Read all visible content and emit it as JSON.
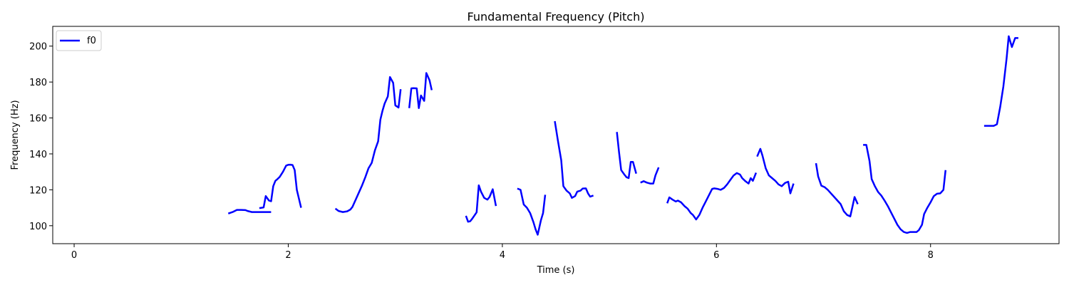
{
  "chart_data": {
    "type": "line",
    "title": "Fundamental Frequency (Pitch)",
    "xlabel": "Time (s)",
    "ylabel": "Frequency (Hz)",
    "xlim": [
      -0.2,
      9.2
    ],
    "ylim": [
      90,
      211
    ],
    "x_ticks": [
      0,
      2,
      4,
      6,
      8
    ],
    "y_ticks": [
      100,
      120,
      140,
      160,
      180,
      200
    ],
    "grid": false,
    "legend_position": "upper-left",
    "series": [
      {
        "name": "f0",
        "color": "#0000ff",
        "segments": [
          [
            [
              1.44,
              106.8
            ],
            [
              1.48,
              107.6
            ],
            [
              1.52,
              108.8
            ],
            [
              1.56,
              108.8
            ],
            [
              1.6,
              108.7
            ],
            [
              1.62,
              108.2
            ],
            [
              1.66,
              107.6
            ],
            [
              1.7,
              107.6
            ],
            [
              1.74,
              107.6
            ],
            [
              1.78,
              107.6
            ],
            [
              1.82,
              107.6
            ],
            [
              1.84,
              107.6
            ]
          ],
          [
            [
              1.73,
              109.8
            ],
            [
              1.77,
              110.2
            ],
            [
              1.79,
              116.5
            ],
            [
              1.82,
              114
            ],
            [
              1.84,
              113.6
            ],
            [
              1.86,
              122
            ],
            [
              1.88,
              125
            ],
            [
              1.9,
              126
            ],
            [
              1.92,
              127.2
            ],
            [
              1.95,
              130
            ],
            [
              1.98,
              133.5
            ],
            [
              2.0,
              133.9
            ],
            [
              2.02,
              134
            ],
            [
              2.04,
              133.8
            ],
            [
              2.06,
              131
            ],
            [
              2.08,
              120
            ],
            [
              2.1,
              115
            ],
            [
              2.12,
              110
            ]
          ],
          [
            [
              2.44,
              109.5
            ],
            [
              2.47,
              108.2
            ],
            [
              2.51,
              107.6
            ],
            [
              2.55,
              108
            ],
            [
              2.58,
              109
            ],
            [
              2.6,
              110.5
            ],
            [
              2.63,
              114.5
            ],
            [
              2.66,
              118.5
            ],
            [
              2.69,
              122.5
            ],
            [
              2.72,
              127
            ],
            [
              2.75,
              132
            ],
            [
              2.78,
              135
            ],
            [
              2.81,
              142
            ],
            [
              2.84,
              147
            ],
            [
              2.86,
              159
            ],
            [
              2.88,
              164
            ],
            [
              2.9,
              168
            ],
            [
              2.93,
              172
            ],
            [
              2.95,
              182.8
            ],
            [
              2.98,
              179.5
            ],
            [
              3.0,
              167
            ],
            [
              3.03,
              165.8
            ],
            [
              3.05,
              176
            ]
          ],
          [
            [
              3.13,
              165.5
            ],
            [
              3.15,
              176.5
            ],
            [
              3.17,
              176.6
            ],
            [
              3.2,
              176.5
            ],
            [
              3.22,
              165.5
            ],
            [
              3.24,
              172.5
            ],
            [
              3.27,
              169.5
            ],
            [
              3.29,
              185
            ],
            [
              3.32,
              181
            ],
            [
              3.34,
              175.5
            ]
          ],
          [
            [
              3.66,
              105.5
            ],
            [
              3.68,
              102.2
            ],
            [
              3.7,
              102.5
            ],
            [
              3.72,
              104
            ],
            [
              3.76,
              107.5
            ],
            [
              3.78,
              122.5
            ],
            [
              3.8,
              119
            ],
            [
              3.83,
              115.5
            ],
            [
              3.86,
              114.5
            ],
            [
              3.88,
              116
            ],
            [
              3.91,
              120.3
            ],
            [
              3.94,
              111
            ]
          ],
          [
            [
              4.14,
              120.7
            ],
            [
              4.17,
              120
            ],
            [
              4.2,
              111.8
            ],
            [
              4.23,
              110
            ],
            [
              4.26,
              107
            ],
            [
              4.29,
              102
            ],
            [
              4.31,
              98
            ],
            [
              4.33,
              95
            ],
            [
              4.36,
              103
            ],
            [
              4.38,
              107
            ],
            [
              4.4,
              117.2
            ]
          ],
          [
            [
              4.49,
              158.2
            ],
            [
              4.52,
              147
            ],
            [
              4.55,
              136.5
            ],
            [
              4.57,
              122
            ],
            [
              4.6,
              119.5
            ],
            [
              4.63,
              118
            ],
            [
              4.65,
              115.5
            ],
            [
              4.68,
              116.5
            ],
            [
              4.7,
              119
            ],
            [
              4.73,
              119.5
            ],
            [
              4.75,
              120.7
            ],
            [
              4.78,
              120.8
            ],
            [
              4.8,
              118
            ],
            [
              4.82,
              116.2
            ],
            [
              4.85,
              116.8
            ]
          ],
          [
            [
              5.07,
              152.2
            ],
            [
              5.09,
              141
            ],
            [
              5.11,
              131
            ],
            [
              5.14,
              128.5
            ],
            [
              5.16,
              127
            ],
            [
              5.18,
              126.5
            ],
            [
              5.2,
              135.5
            ],
            [
              5.22,
              135.5
            ],
            [
              5.25,
              129
            ]
          ],
          [
            [
              5.29,
              124
            ],
            [
              5.32,
              124.8
            ],
            [
              5.35,
              124
            ],
            [
              5.38,
              123.5
            ],
            [
              5.41,
              123.5
            ],
            [
              5.43,
              128
            ],
            [
              5.46,
              132.5
            ]
          ],
          [
            [
              5.54,
              112.5
            ],
            [
              5.56,
              115.8
            ],
            [
              5.59,
              114.5
            ],
            [
              5.62,
              113.5
            ],
            [
              5.64,
              114
            ],
            [
              5.67,
              113
            ],
            [
              5.7,
              111
            ],
            [
              5.73,
              109.5
            ],
            [
              5.76,
              107
            ],
            [
              5.78,
              106
            ],
            [
              5.81,
              103.5
            ],
            [
              5.84,
              106
            ],
            [
              5.87,
              110
            ],
            [
              5.9,
              113.5
            ],
            [
              5.93,
              117
            ],
            [
              5.96,
              120.5
            ],
            [
              5.98,
              120.8
            ],
            [
              6.01,
              120.5
            ],
            [
              6.04,
              120
            ],
            [
              6.07,
              121
            ],
            [
              6.1,
              123
            ],
            [
              6.13,
              125.5
            ],
            [
              6.16,
              128
            ],
            [
              6.19,
              129.3
            ],
            [
              6.22,
              128.5
            ],
            [
              6.24,
              126.5
            ],
            [
              6.27,
              124.8
            ],
            [
              6.3,
              123.5
            ],
            [
              6.32,
              126.5
            ],
            [
              6.34,
              125
            ],
            [
              6.37,
              129.5
            ]
          ],
          [
            [
              6.38,
              138.5
            ],
            [
              6.41,
              142.8
            ],
            [
              6.43,
              139
            ],
            [
              6.46,
              132
            ],
            [
              6.49,
              128
            ],
            [
              6.52,
              126.5
            ],
            [
              6.55,
              125
            ],
            [
              6.58,
              123
            ],
            [
              6.61,
              122
            ],
            [
              6.64,
              123.8
            ],
            [
              6.67,
              124.5
            ],
            [
              6.69,
              118
            ],
            [
              6.72,
              123.5
            ]
          ],
          [
            [
              6.93,
              134.8
            ],
            [
              6.95,
              127.5
            ],
            [
              6.98,
              122.3
            ],
            [
              7.01,
              121.5
            ],
            [
              7.04,
              120
            ],
            [
              7.07,
              118
            ],
            [
              7.1,
              116
            ],
            [
              7.13,
              114
            ],
            [
              7.16,
              112
            ],
            [
              7.19,
              108
            ],
            [
              7.22,
              106
            ],
            [
              7.25,
              105.2
            ],
            [
              7.27,
              110.5
            ],
            [
              7.29,
              116
            ],
            [
              7.32,
              112
            ]
          ],
          [
            [
              7.37,
              145
            ],
            [
              7.4,
              145
            ],
            [
              7.43,
              136
            ],
            [
              7.45,
              126
            ],
            [
              7.48,
              122
            ],
            [
              7.51,
              118.8
            ],
            [
              7.54,
              116.8
            ],
            [
              7.57,
              114
            ],
            [
              7.6,
              111
            ],
            [
              7.63,
              107.5
            ],
            [
              7.66,
              104
            ],
            [
              7.69,
              100.5
            ],
            [
              7.72,
              98
            ],
            [
              7.75,
              96.5
            ],
            [
              7.78,
              96
            ],
            [
              7.81,
              96.5
            ],
            [
              7.84,
              96.5
            ],
            [
              7.87,
              96.5
            ],
            [
              7.89,
              97.5
            ],
            [
              7.92,
              100.5
            ],
            [
              7.94,
              106.5
            ],
            [
              7.97,
              110
            ],
            [
              8.0,
              113
            ],
            [
              8.03,
              116.5
            ],
            [
              8.06,
              117.8
            ],
            [
              8.09,
              118
            ],
            [
              8.12,
              120
            ],
            [
              8.14,
              131
            ]
          ],
          [
            [
              8.5,
              155.6
            ],
            [
              8.53,
              155.6
            ],
            [
              8.56,
              155.6
            ],
            [
              8.59,
              155.6
            ],
            [
              8.62,
              156.5
            ],
            [
              8.65,
              166
            ],
            [
              8.68,
              177.5
            ],
            [
              8.71,
              193
            ],
            [
              8.73,
              205.5
            ],
            [
              8.76,
              199.5
            ],
            [
              8.79,
              204.5
            ],
            [
              8.82,
              204.5
            ]
          ]
        ]
      }
    ]
  }
}
